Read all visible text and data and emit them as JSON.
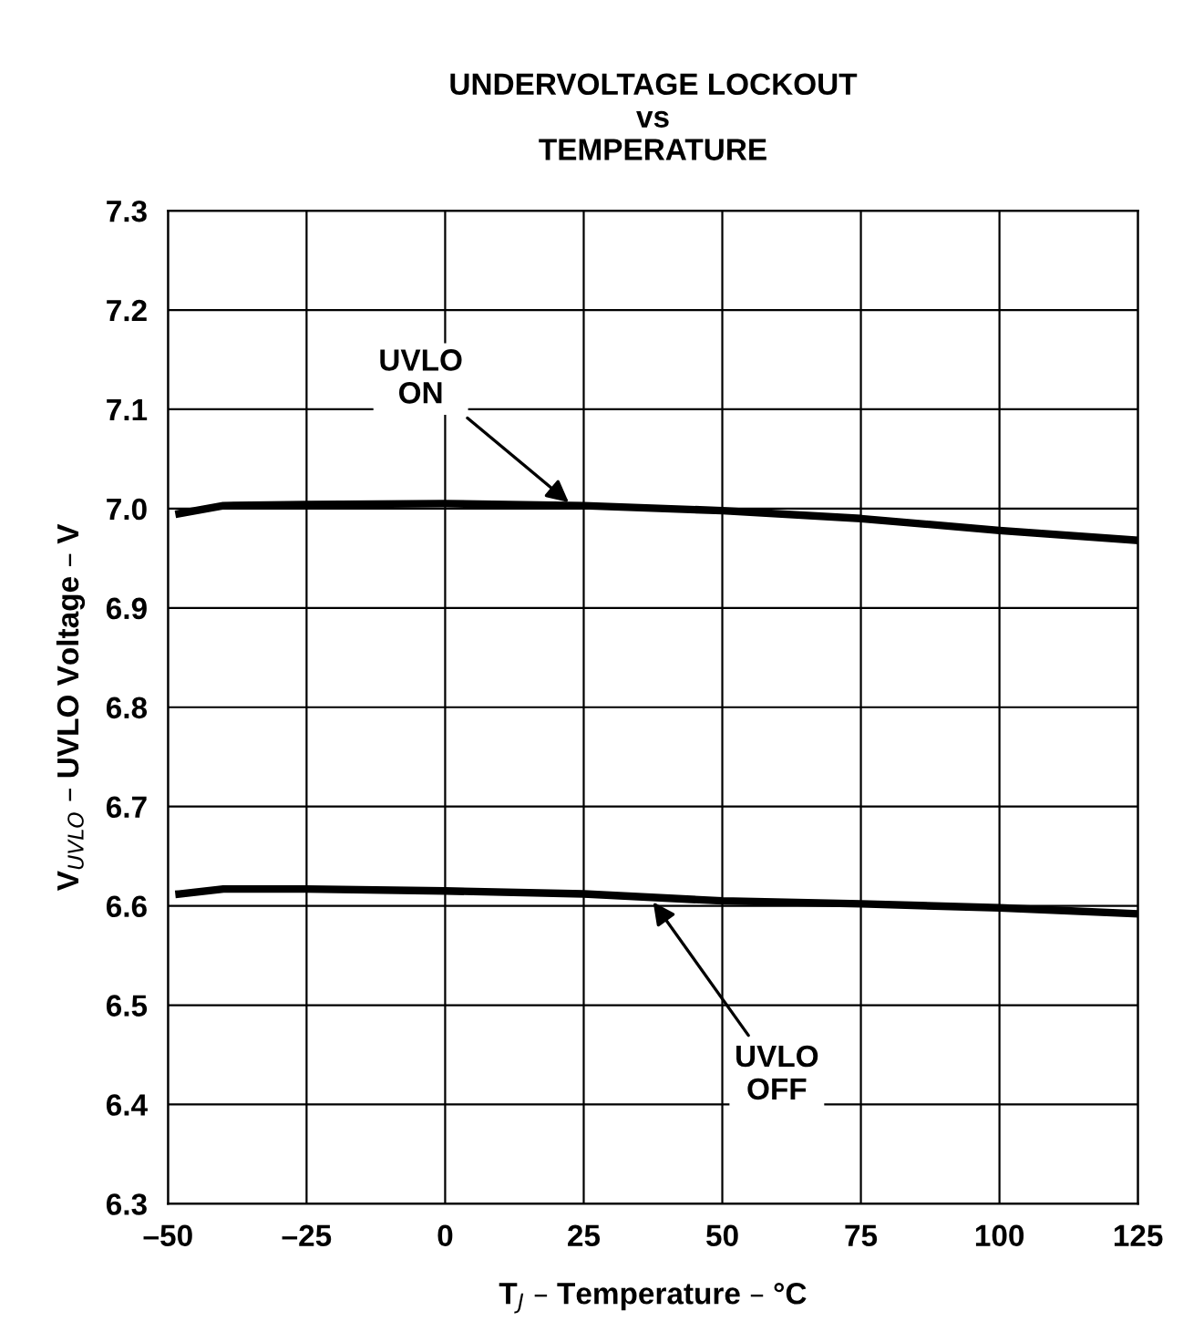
{
  "chart_data": {
    "type": "line",
    "title": "UNDERVOLTAGE LOCKOUT\nvs\nTEMPERATURE",
    "xlabel": "T$_{J}$ – Temperature – °C",
    "ylabel": "V$_{UVLO}$ – UVLO Voltage – V",
    "x": [
      -48,
      -40,
      -25,
      0,
      25,
      50,
      75,
      100,
      125
    ],
    "series": [
      {
        "color": "#000000",
        "values": [
          6.995,
          7.003,
          7.004,
          7.005,
          7.003,
          6.998,
          6.99,
          6.978,
          6.968
        ]
      },
      {
        "color": "#000000",
        "values": [
          6.612,
          6.617,
          6.617,
          6.615,
          6.612,
          6.605,
          6.602,
          6.598,
          6.592
        ]
      }
    ],
    "annotations": [
      {
        "text": "UVLO\nON",
        "x": 23,
        "y": 7.003
      },
      {
        "text": "UVLO\nOFF",
        "x": 37,
        "y": 6.608
      }
    ],
    "xlim": [
      -50,
      125
    ],
    "ylim": [
      6.3,
      7.3
    ],
    "xticks": [
      {
        "value": -50,
        "label": "–50"
      },
      {
        "value": -25,
        "label": "–25"
      },
      0,
      25,
      50,
      75,
      100,
      125
    ],
    "yticks": [
      6.3,
      6.4,
      6.5,
      6.6,
      6.7,
      6.8,
      6.9,
      {
        "value": 7.0,
        "label": "7.0"
      },
      7.1,
      7.2,
      7.3
    ],
    "grid": true,
    "marker": "none",
    "line_style": "solid"
  }
}
